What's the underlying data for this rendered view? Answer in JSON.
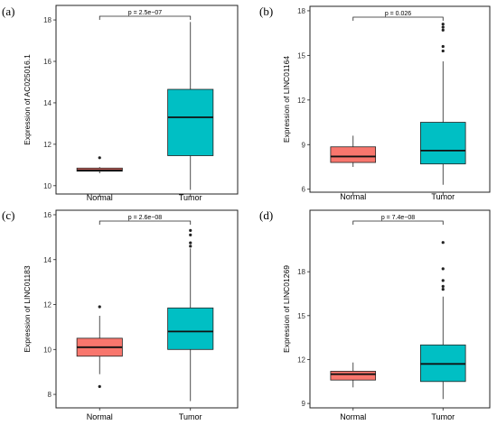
{
  "figure": {
    "background": "#ffffff"
  },
  "colors": {
    "normal": "#f8766d",
    "tumor": "#00bfc4",
    "line": "#1a1a1a"
  },
  "chart_data": [
    {
      "type": "box",
      "panel_label": "(a)",
      "ylabel": "Expression of AC025016.1",
      "categories": [
        "Normal",
        "Tumor"
      ],
      "ylim": [
        9.6,
        18.7
      ],
      "yticks": [
        10,
        12,
        14,
        16,
        18
      ],
      "boxes": [
        {
          "name": "Normal",
          "min": 10.6,
          "q1": 10.7,
          "median": 10.75,
          "q3": 10.85,
          "max": 10.9,
          "outliers": [
            11.35
          ]
        },
        {
          "name": "Tumor",
          "min": 9.8,
          "q1": 11.45,
          "median": 13.3,
          "q3": 14.65,
          "max": 17.9,
          "outliers": []
        }
      ],
      "annotation": "p = 2.5e−07"
    },
    {
      "type": "box",
      "panel_label": "(b)",
      "ylabel": "Expression of LINC01164",
      "categories": [
        "Normal",
        "Tumor"
      ],
      "ylim": [
        5.8,
        18.3
      ],
      "yticks": [
        6,
        9,
        12,
        15,
        18
      ],
      "boxes": [
        {
          "name": "Normal",
          "min": 7.5,
          "q1": 7.8,
          "median": 8.2,
          "q3": 8.85,
          "max": 9.6,
          "outliers": []
        },
        {
          "name": "Tumor",
          "min": 6.3,
          "q1": 7.7,
          "median": 8.6,
          "q3": 10.5,
          "max": 14.6,
          "outliers": [
            15.3,
            15.6,
            16.7,
            16.9,
            17.1
          ]
        }
      ],
      "annotation": "p = 0.026"
    },
    {
      "type": "box",
      "panel_label": "(c)",
      "ylabel": "Expression of LINC01183",
      "categories": [
        "Normal",
        "Tumor"
      ],
      "ylim": [
        7.4,
        16.2
      ],
      "yticks": [
        8,
        10,
        12,
        14,
        16
      ],
      "boxes": [
        {
          "name": "Normal",
          "min": 8.9,
          "q1": 9.7,
          "median": 10.1,
          "q3": 10.5,
          "max": 11.5,
          "outliers": [
            8.35,
            11.9
          ]
        },
        {
          "name": "Tumor",
          "min": 7.7,
          "q1": 10.0,
          "median": 10.8,
          "q3": 11.85,
          "max": 14.5,
          "outliers": [
            14.6,
            14.75,
            15.1,
            15.3
          ]
        }
      ],
      "annotation": "p = 2.6e−08"
    },
    {
      "type": "box",
      "panel_label": "(d)",
      "ylabel": "Expression of LINC01269",
      "categories": [
        "Normal",
        "Tumor"
      ],
      "ylim": [
        8.7,
        22.2
      ],
      "yticks": [
        9,
        12,
        15,
        18
      ],
      "boxes": [
        {
          "name": "Normal",
          "min": 10.1,
          "q1": 10.6,
          "median": 11.0,
          "q3": 11.2,
          "max": 11.8,
          "outliers": []
        },
        {
          "name": "Tumor",
          "min": 9.3,
          "q1": 10.5,
          "median": 11.7,
          "q3": 13.0,
          "max": 16.3,
          "outliers": [
            16.8,
            17.0,
            17.4,
            18.2,
            20.0
          ]
        }
      ],
      "annotation": "p = 7.4e−08"
    }
  ]
}
